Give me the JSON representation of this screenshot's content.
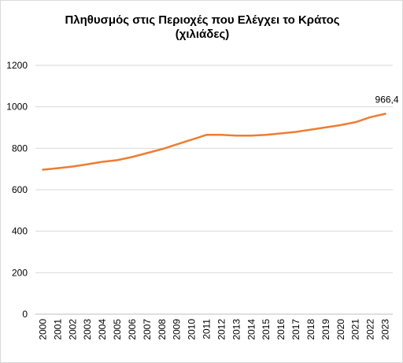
{
  "chart_data": {
    "type": "line",
    "title_lines": [
      "Πληθυσμός στις Περιοχές που Ελέγχει το Κράτος",
      "(χιλιάδες)"
    ],
    "xlabel": "",
    "ylabel": "",
    "categories": [
      "2000",
      "2001",
      "2002",
      "2003",
      "2004",
      "2005",
      "2006",
      "2007",
      "2008",
      "2009",
      "2010",
      "2011",
      "2012",
      "2013",
      "2014",
      "2015",
      "2016",
      "2017",
      "2018",
      "2019",
      "2020",
      "2021",
      "2022",
      "2023"
    ],
    "series": [
      {
        "values": [
          697,
          704,
          712,
          723,
          735,
          743,
          758,
          777,
          796,
          819,
          842,
          865,
          865,
          861,
          861,
          865,
          872,
          879,
          890,
          901,
          912,
          926,
          950,
          966.4
        ],
        "color": "#ED7D31"
      }
    ],
    "ylim": [
      0,
      1200
    ],
    "yticks": [
      0,
      200,
      400,
      600,
      800,
      1000,
      1200
    ],
    "grid": true,
    "legend": "none",
    "data_labels": [
      {
        "index": 23,
        "text": "966,4"
      }
    ]
  }
}
